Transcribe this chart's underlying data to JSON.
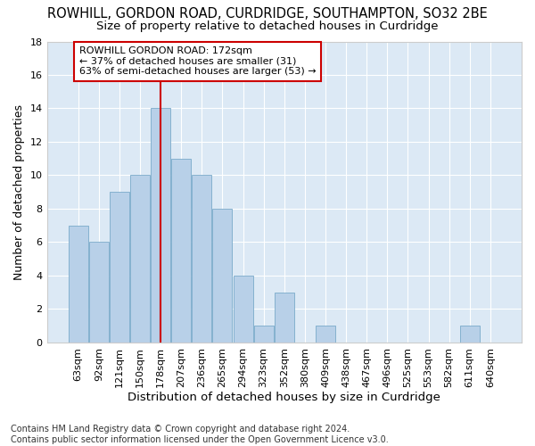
{
  "title": "ROWHILL, GORDON ROAD, CURDRIDGE, SOUTHAMPTON, SO32 2BE",
  "subtitle": "Size of property relative to detached houses in Curdridge",
  "xlabel": "Distribution of detached houses by size in Curdridge",
  "ylabel": "Number of detached properties",
  "categories": [
    "63sqm",
    "92sqm",
    "121sqm",
    "150sqm",
    "178sqm",
    "207sqm",
    "236sqm",
    "265sqm",
    "294sqm",
    "323sqm",
    "352sqm",
    "380sqm",
    "409sqm",
    "438sqm",
    "467sqm",
    "496sqm",
    "525sqm",
    "553sqm",
    "582sqm",
    "611sqm",
    "640sqm"
  ],
  "values": [
    7,
    6,
    9,
    10,
    14,
    11,
    10,
    8,
    4,
    1,
    3,
    0,
    1,
    0,
    0,
    0,
    0,
    0,
    0,
    1,
    0
  ],
  "bar_color": "#b8d0e8",
  "bar_edge_color": "#7aaaca",
  "vline_index": 4,
  "vline_color": "#cc0000",
  "ylim": [
    0,
    18
  ],
  "yticks": [
    0,
    2,
    4,
    6,
    8,
    10,
    12,
    14,
    16,
    18
  ],
  "annotation_line1": "ROWHILL GORDON ROAD: 172sqm",
  "annotation_line2": "← 37% of detached houses are smaller (31)",
  "annotation_line3": "63% of semi-detached houses are larger (53) →",
  "footer": "Contains HM Land Registry data © Crown copyright and database right 2024.\nContains public sector information licensed under the Open Government Licence v3.0.",
  "bg_color": "#ffffff",
  "plot_bg_color": "#dce9f5",
  "grid_color": "#ffffff",
  "title_fontsize": 10.5,
  "subtitle_fontsize": 9.5,
  "ylabel_fontsize": 9,
  "xlabel_fontsize": 9.5,
  "tick_fontsize": 8,
  "annotation_fontsize": 8,
  "footer_fontsize": 7
}
